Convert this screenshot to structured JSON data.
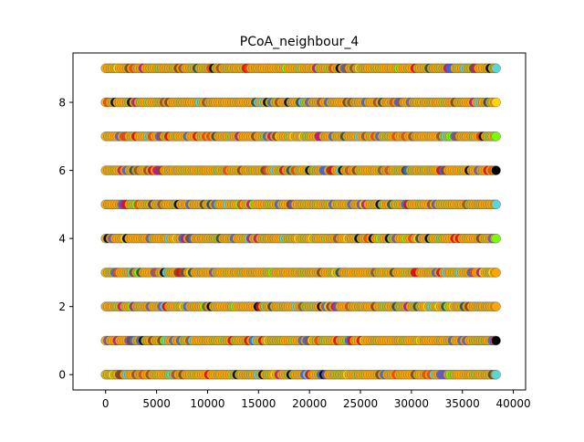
{
  "chart_data": {
    "type": "scatter",
    "title": "PCoA_neighbour_4",
    "xlabel": "",
    "ylabel": "",
    "xlim": [
      -3200,
      41200
    ],
    "ylim": [
      -0.45,
      9.45
    ],
    "xticks": [
      0,
      5000,
      10000,
      15000,
      20000,
      25000,
      30000,
      35000,
      40000
    ],
    "xtick_labels": [
      "0",
      "5000",
      "10000",
      "15000",
      "20000",
      "25000",
      "30000",
      "35000",
      "40000"
    ],
    "yticks": [
      0,
      2,
      4,
      6,
      8
    ],
    "ytick_labels": [
      "0",
      "2",
      "4",
      "6",
      "8"
    ],
    "grid": false,
    "legend": "none",
    "x_range_per_row": [
      0,
      38300
    ],
    "rows": [
      {
        "y": 0,
        "x_start": 0,
        "x_end": 38300,
        "last_point_color": "#5ad6d6"
      },
      {
        "y": 1,
        "x_start": 0,
        "x_end": 38300,
        "last_point_color": "#000000"
      },
      {
        "y": 2,
        "x_start": 0,
        "x_end": 38300,
        "last_point_color": "#ffa500"
      },
      {
        "y": 3,
        "x_start": 0,
        "x_end": 38300,
        "last_point_color": "#ffa500"
      },
      {
        "y": 4,
        "x_start": 0,
        "x_end": 38300,
        "last_point_color": "#7cfc00"
      },
      {
        "y": 5,
        "x_start": 0,
        "x_end": 38300,
        "last_point_color": "#5ad6d6"
      },
      {
        "y": 6,
        "x_start": 0,
        "x_end": 38300,
        "last_point_color": "#000000"
      },
      {
        "y": 7,
        "x_start": 0,
        "x_end": 38300,
        "last_point_color": "#7cfc00"
      },
      {
        "y": 8,
        "x_start": 0,
        "x_end": 38300,
        "last_point_color": "#ffd700"
      },
      {
        "y": 9,
        "x_start": 0,
        "x_end": 38300,
        "last_point_color": "#5ad6d6"
      }
    ],
    "palette": [
      "#ffa500",
      "#daa520",
      "#b8b820",
      "#5ad6d6",
      "#6a5acd",
      "#ff4500",
      "#ff0000",
      "#9acd32",
      "#7cfc00",
      "#000000",
      "#ffd700",
      "#8b4513",
      "#4169e1",
      "#a0522d",
      "#2f4f4f",
      "#c71585"
    ]
  }
}
